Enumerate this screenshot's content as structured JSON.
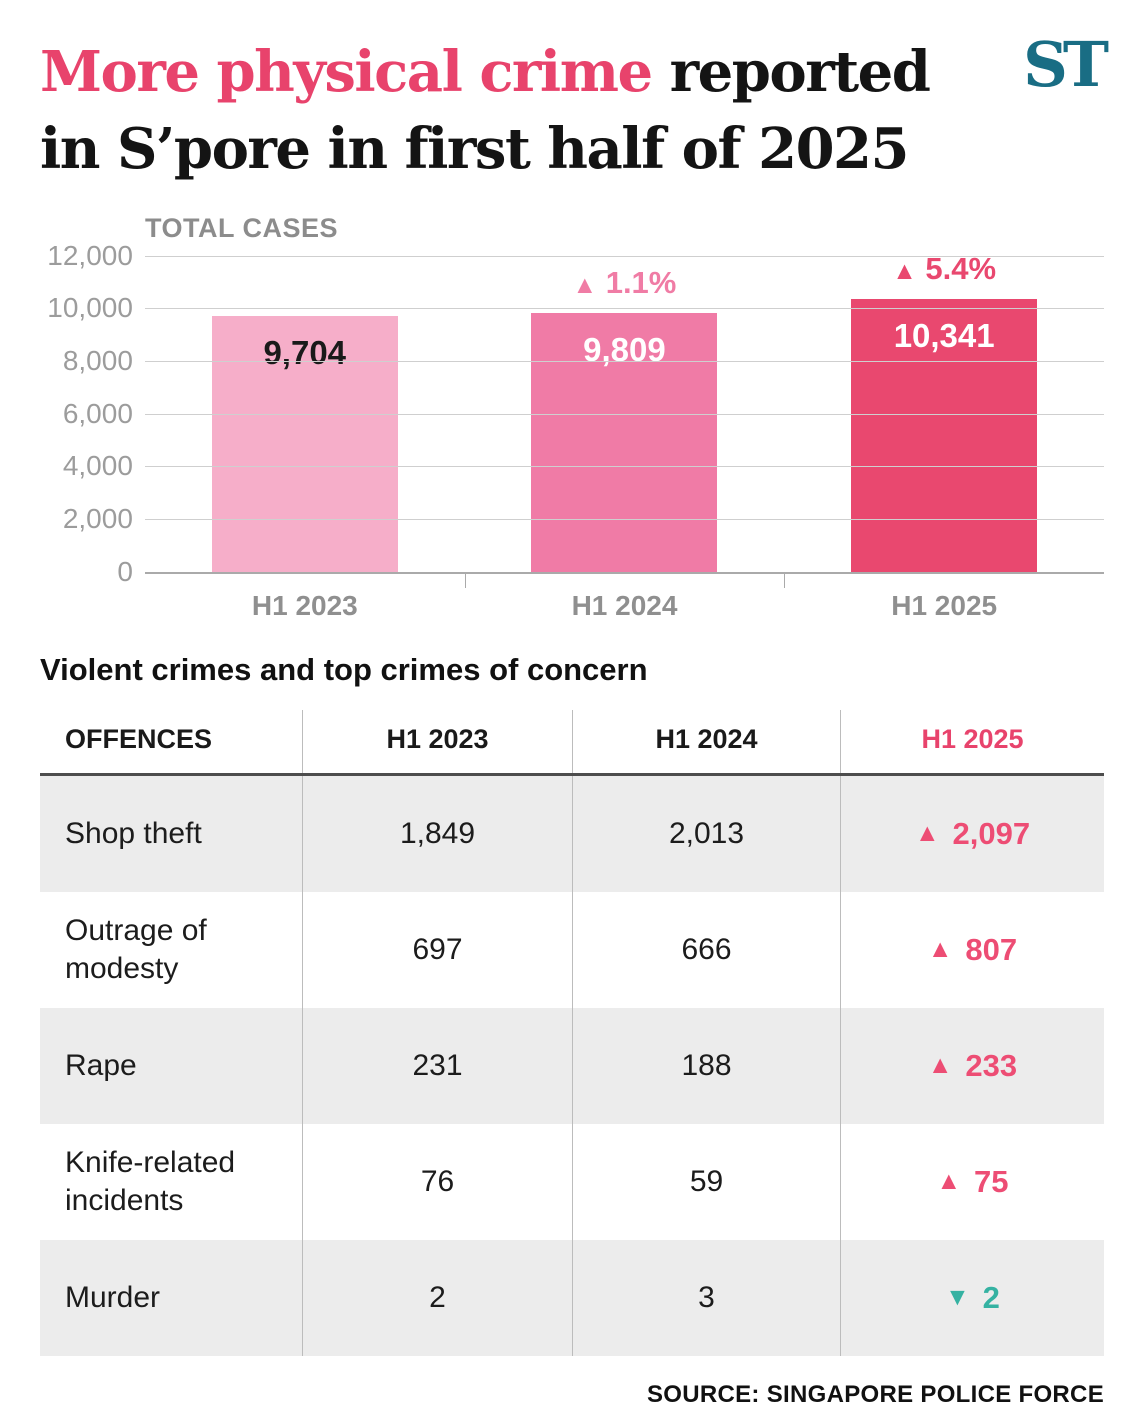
{
  "header": {
    "title_line1_highlight": "More physical crime",
    "title_line1_rest": " reported",
    "title_line2": "in S’pore in first half of 2025",
    "logo": "ST"
  },
  "chart_data": {
    "type": "bar",
    "title": "TOTAL CASES",
    "categories": [
      "H1 2023",
      "H1 2024",
      "H1 2025"
    ],
    "values": [
      9704,
      9809,
      10341
    ],
    "value_labels": [
      "9,704",
      "9,809",
      "10,341"
    ],
    "value_label_colors": [
      "#1a1a1a",
      "#ffffff",
      "#ffffff"
    ],
    "change_labels": [
      "",
      "1.1%",
      "5.4%"
    ],
    "change_colors": [
      "",
      "#f07ca5",
      "#e9486f"
    ],
    "bar_colors": [
      "#f6aec9",
      "#f07ba6",
      "#e9486f"
    ],
    "ylim": [
      0,
      12000
    ],
    "ytick_labels": [
      "12,000",
      "10,000",
      "8,000",
      "6,000",
      "4,000",
      "2,000",
      "0"
    ],
    "grid": true,
    "legend": "none"
  },
  "table": {
    "section_title": "Violent crimes and top crimes of concern",
    "headers": [
      "OFFENCES",
      "H1 2023",
      "H1 2024",
      "H1 2025"
    ],
    "rows": [
      {
        "offence": "Shop theft",
        "h1_2023": "1,849",
        "h1_2024": "2,013",
        "h1_2025": "2,097",
        "direction": "up"
      },
      {
        "offence": "Outrage of modesty",
        "h1_2023": "697",
        "h1_2024": "666",
        "h1_2025": "807",
        "direction": "up"
      },
      {
        "offence": "Rape",
        "h1_2023": "231",
        "h1_2024": "188",
        "h1_2025": "233",
        "direction": "up"
      },
      {
        "offence": "Knife-related incidents",
        "h1_2023": "76",
        "h1_2024": "59",
        "h1_2025": "75",
        "direction": "up"
      },
      {
        "offence": "Murder",
        "h1_2023": "2",
        "h1_2024": "3",
        "h1_2025": "2",
        "direction": "down"
      }
    ]
  },
  "footer": {
    "source": "SOURCE: SINGAPORE POLICE FORCE"
  },
  "colors": {
    "accent_pink": "#e8436c",
    "bar_light_pink": "#f6aec9",
    "bar_mid_pink": "#f07ba6",
    "bar_dark_pink": "#e9486f",
    "down_teal": "#35b2a2",
    "logo_teal": "#196d84"
  },
  "icons": {
    "up": "▲",
    "down": "▼"
  }
}
